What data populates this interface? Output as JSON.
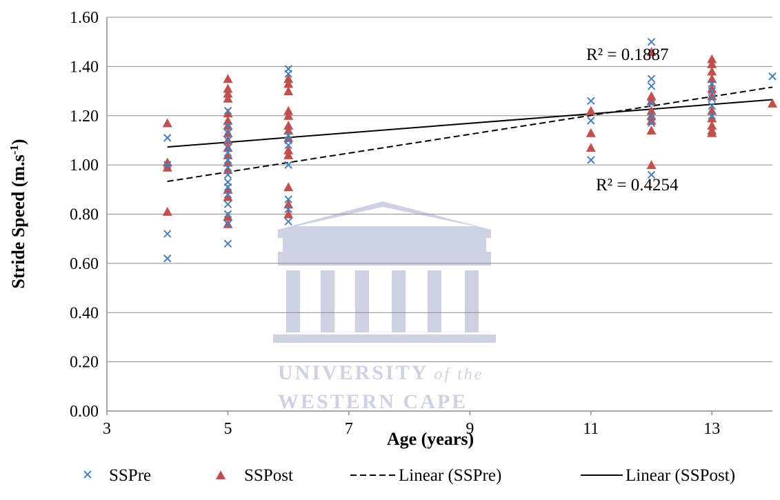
{
  "chart_data": {
    "type": "scatter",
    "xlabel": "Age (years)",
    "ylabel_main": "Stride Speed (m.s",
    "ylabel_sup": "-1",
    "ylabel_end": ")",
    "xlim": [
      3,
      14
    ],
    "ylim": [
      0,
      1.6
    ],
    "xticks": [
      3,
      5,
      7,
      9,
      11,
      13
    ],
    "yticks": [
      "0.00",
      "0.20",
      "0.40",
      "0.60",
      "0.80",
      "1.00",
      "1.20",
      "1.40",
      "1.60"
    ],
    "grid": true,
    "legend_position": "bottom",
    "series": [
      {
        "name": "SSPre",
        "marker": "x",
        "color": "#4a7ebb",
        "points": [
          [
            4,
            1.11
          ],
          [
            4,
            1.0
          ],
          [
            4,
            0.72
          ],
          [
            4,
            0.62
          ],
          [
            5,
            1.22
          ],
          [
            5,
            1.16
          ],
          [
            5,
            1.13
          ],
          [
            5,
            1.1
          ],
          [
            5,
            1.07
          ],
          [
            5,
            1.05
          ],
          [
            5,
            1.02
          ],
          [
            5,
            0.99
          ],
          [
            5,
            0.96
          ],
          [
            5,
            0.93
          ],
          [
            5,
            0.91
          ],
          [
            5,
            0.88
          ],
          [
            5,
            0.84
          ],
          [
            5,
            0.8
          ],
          [
            5,
            0.76
          ],
          [
            5,
            0.68
          ],
          [
            6,
            1.39
          ],
          [
            6,
            1.37
          ],
          [
            6,
            1.12
          ],
          [
            6,
            1.1
          ],
          [
            6,
            1.08
          ],
          [
            6,
            1.0
          ],
          [
            6,
            0.86
          ],
          [
            6,
            0.82
          ],
          [
            6,
            0.77
          ],
          [
            11,
            1.26
          ],
          [
            11,
            1.18
          ],
          [
            11,
            1.02
          ],
          [
            12,
            1.5
          ],
          [
            12,
            1.35
          ],
          [
            12,
            1.32
          ],
          [
            12,
            1.25
          ],
          [
            12,
            1.2
          ],
          [
            12,
            1.17
          ],
          [
            12,
            0.96
          ],
          [
            13,
            1.33
          ],
          [
            13,
            1.3
          ],
          [
            13,
            1.27
          ],
          [
            13,
            1.24
          ],
          [
            13,
            1.2
          ],
          [
            14,
            1.36
          ]
        ]
      },
      {
        "name": "SSPost",
        "marker": "triangle",
        "color": "#c0504d",
        "points": [
          [
            4,
            1.17
          ],
          [
            4,
            1.01
          ],
          [
            4,
            0.99
          ],
          [
            4,
            0.81
          ],
          [
            5,
            1.35
          ],
          [
            5,
            1.31
          ],
          [
            5,
            1.29
          ],
          [
            5,
            1.27
          ],
          [
            5,
            1.21
          ],
          [
            5,
            1.18
          ],
          [
            5,
            1.16
          ],
          [
            5,
            1.13
          ],
          [
            5,
            1.1
          ],
          [
            5,
            1.07
          ],
          [
            5,
            1.04
          ],
          [
            5,
            1.01
          ],
          [
            5,
            0.98
          ],
          [
            5,
            0.9
          ],
          [
            5,
            0.87
          ],
          [
            5,
            0.79
          ],
          [
            5,
            0.76
          ],
          [
            6,
            1.35
          ],
          [
            6,
            1.33
          ],
          [
            6,
            1.3
          ],
          [
            6,
            1.22
          ],
          [
            6,
            1.2
          ],
          [
            6,
            1.16
          ],
          [
            6,
            1.14
          ],
          [
            6,
            1.11
          ],
          [
            6,
            1.06
          ],
          [
            6,
            1.04
          ],
          [
            6,
            0.91
          ],
          [
            6,
            0.84
          ],
          [
            6,
            0.8
          ],
          [
            11,
            1.22
          ],
          [
            11,
            1.13
          ],
          [
            11,
            1.07
          ],
          [
            12,
            1.46
          ],
          [
            12,
            1.28
          ],
          [
            12,
            1.26
          ],
          [
            12,
            1.22
          ],
          [
            12,
            1.2
          ],
          [
            12,
            1.18
          ],
          [
            12,
            1.14
          ],
          [
            12,
            1.0
          ],
          [
            13,
            1.43
          ],
          [
            13,
            1.41
          ],
          [
            13,
            1.38
          ],
          [
            13,
            1.35
          ],
          [
            13,
            1.31
          ],
          [
            13,
            1.28
          ],
          [
            13,
            1.22
          ],
          [
            13,
            1.19
          ],
          [
            13,
            1.16
          ],
          [
            13,
            1.14
          ],
          [
            13,
            1.13
          ],
          [
            14,
            1.25
          ]
        ]
      }
    ],
    "trendlines": [
      {
        "name": "Linear (SSPre)",
        "style": "dashed",
        "color": "#000000",
        "from": [
          4,
          0.933
        ],
        "to": [
          14,
          1.316
        ],
        "r2_label": "R² = 0.4254"
      },
      {
        "name": "Linear (SSPost)",
        "style": "solid",
        "color": "#000000",
        "from": [
          4,
          1.073
        ],
        "to": [
          14,
          1.265
        ],
        "r2_label": "R² = 0.1887"
      }
    ],
    "watermark": {
      "line1": "UNIVERSITY",
      "line1_suffix": "of the",
      "line2": "WESTERN CAPE"
    }
  }
}
